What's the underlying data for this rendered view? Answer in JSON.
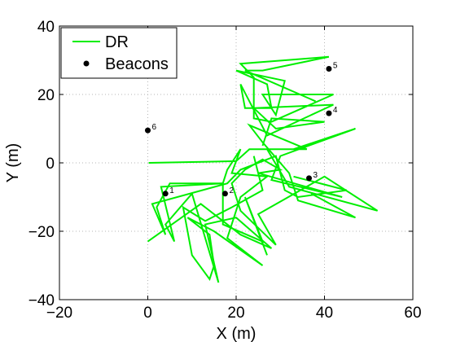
{
  "chart_data": {
    "type": "line",
    "xlabel": "X (m)",
    "ylabel": "Y (m)",
    "xlim": [
      -20,
      60
    ],
    "ylim": [
      -40,
      40
    ],
    "xticks": [
      -20,
      0,
      20,
      40,
      60
    ],
    "yticks": [
      -40,
      -20,
      0,
      20,
      40
    ],
    "xtick_labels": [
      "−20",
      "0",
      "20",
      "40",
      "60"
    ],
    "ytick_labels": [
      "−40",
      "−20",
      "0",
      "20",
      "40"
    ],
    "grid": true,
    "legend_position": "top-left",
    "legend": [
      "DR",
      "Beacons"
    ],
    "colors": {
      "dr": "#00ee00",
      "beacon": "#000000"
    },
    "series": [
      {
        "name": "DR",
        "kind": "line",
        "segments": [
          [
            [
              0.2,
              0
            ],
            [
              20,
              0.5
            ],
            [
              23,
              4
            ],
            [
              33,
              4
            ],
            [
              47,
              10
            ],
            [
              30,
              2
            ],
            [
              28,
              -5
            ],
            [
              44,
              -10
            ],
            [
              25,
              -3
            ],
            [
              30,
              -2
            ],
            [
              26,
              1
            ],
            [
              22,
              -2
            ],
            [
              19,
              -6
            ],
            [
              21,
              -14
            ],
            [
              29,
              -24
            ],
            [
              25,
              -15
            ],
            [
              40,
              -4
            ],
            [
              52,
              -14
            ],
            [
              32,
              -7
            ],
            [
              27,
              4
            ],
            [
              36,
              4
            ],
            [
              23,
              11
            ],
            [
              26,
              6
            ],
            [
              32,
              -3
            ],
            [
              34,
              -11
            ],
            [
              47,
              -16
            ],
            [
              37,
              -9
            ]
          ],
          [
            [
              0,
              -23
            ],
            [
              12,
              -12
            ],
            [
              21,
              -21
            ],
            [
              28,
              -25
            ],
            [
              20,
              -16
            ],
            [
              13,
              -18
            ],
            [
              16,
              -35
            ],
            [
              10,
              -9
            ],
            [
              4,
              -18
            ],
            [
              6,
              -23
            ],
            [
              3,
              -7
            ],
            [
              17,
              -6
            ],
            [
              17,
              -18
            ],
            [
              26,
              -23
            ],
            [
              22,
              -10
            ],
            [
              27,
              -27
            ]
          ],
          [
            [
              26,
              5
            ],
            [
              28,
              13
            ],
            [
              40,
              12
            ],
            [
              29,
              10
            ],
            [
              24,
              16
            ],
            [
              42,
              17
            ],
            [
              27,
              8
            ],
            [
              21,
              23
            ],
            [
              22,
              16
            ],
            [
              28,
              16
            ],
            [
              27,
              23
            ],
            [
              20,
              27
            ],
            [
              31,
              24
            ],
            [
              29,
              14
            ],
            [
              26,
              20
            ],
            [
              42,
              20
            ],
            [
              28,
              12
            ],
            [
              24,
              13
            ],
            [
              24,
              25
            ],
            [
              21,
              29
            ],
            [
              41,
              31
            ],
            [
              26,
              27
            ],
            [
              22,
              27
            ],
            [
              38,
              18
            ]
          ],
          [
            [
              24,
              2
            ],
            [
              26,
              -8
            ],
            [
              19,
              -13
            ],
            [
              13,
              -17
            ],
            [
              8,
              -13
            ],
            [
              10,
              -27
            ],
            [
              14,
              -34
            ],
            [
              15,
              -30
            ],
            [
              14,
              -21
            ],
            [
              9,
              -16
            ],
            [
              15,
              -20
            ],
            [
              26,
              -30
            ],
            [
              18,
              -22
            ],
            [
              21,
              -10
            ],
            [
              27,
              -4
            ],
            [
              19,
              -3
            ],
            [
              21,
              4
            ],
            [
              18,
              -2
            ],
            [
              17,
              -6
            ],
            [
              5,
              -6
            ],
            [
              2,
              -13
            ],
            [
              4,
              -21
            ],
            [
              1,
              -12
            ],
            [
              18,
              -6
            ],
            [
              21,
              -2
            ],
            [
              29,
              2
            ],
            [
              31,
              -8
            ],
            [
              34,
              -10
            ],
            [
              45,
              -8
            ],
            [
              33,
              -4
            ]
          ]
        ]
      },
      {
        "name": "Beacons",
        "kind": "scatter",
        "points": [
          {
            "x": 4,
            "y": -9,
            "label": "1"
          },
          {
            "x": 17.5,
            "y": -9,
            "label": "2"
          },
          {
            "x": 36.5,
            "y": -4.5,
            "label": "3"
          },
          {
            "x": 41,
            "y": 14.5,
            "label": "4"
          },
          {
            "x": 41,
            "y": 27.5,
            "label": "5"
          },
          {
            "x": 0,
            "y": 9.5,
            "label": "6"
          }
        ]
      }
    ]
  }
}
